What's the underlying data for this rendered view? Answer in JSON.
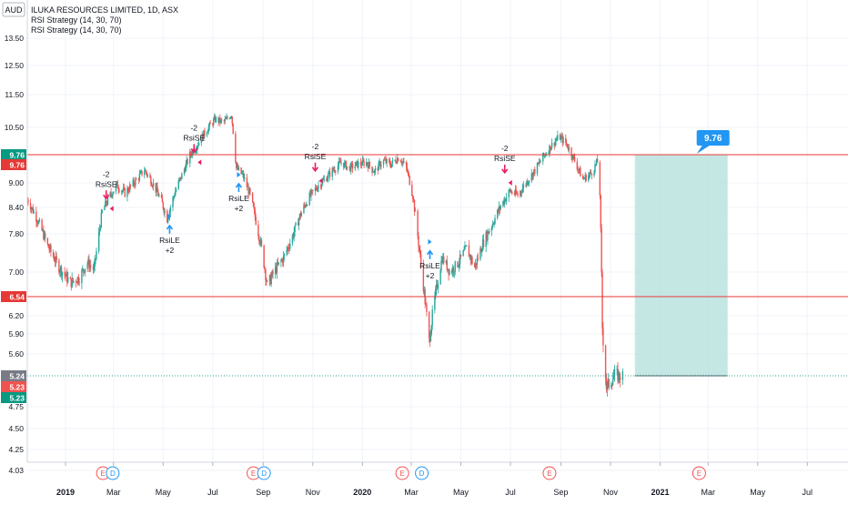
{
  "header": {
    "currency": "AUD",
    "title": "ILUKA RESOURCES LIMITED, 1D, ASX",
    "indicators": [
      "RSI Strategy (14, 30, 70)",
      "RSI Strategy (14, 30, 70)"
    ]
  },
  "colors": {
    "up": "#26a69a",
    "down": "#ef5350",
    "level": "#e53935",
    "target_zone": "#b2dfdb",
    "callout": "#2196f3",
    "price_tag_last": "#787b86",
    "grid": "#f0f3fa",
    "axis_text": "#131722"
  },
  "chart_data": {
    "type": "candlestick",
    "y_ticks": [
      "13.50",
      "12.50",
      "11.50",
      "10.50",
      "9.76",
      "9.76",
      "9.00",
      "8.40",
      "7.80",
      "7.00",
      "6.54",
      "6.20",
      "5.90",
      "5.60",
      "5.24",
      "5.23",
      "5.23",
      "4.75",
      "4.50",
      "4.25",
      "4.03"
    ],
    "y_tick_values": [
      13.5,
      12.5,
      11.5,
      10.5,
      9.9,
      9.55,
      9.0,
      8.4,
      7.8,
      7.0,
      6.54,
      6.2,
      5.9,
      5.6,
      5.24,
      5.23,
      5.23,
      4.75,
      4.5,
      4.25,
      4.03
    ],
    "x_ticks": [
      {
        "label": "2019",
        "bold": true,
        "date": "2019-01-01"
      },
      {
        "label": "Mar",
        "bold": false,
        "date": "2019-03-01"
      },
      {
        "label": "May",
        "bold": false,
        "date": "2019-05-01"
      },
      {
        "label": "Jul",
        "bold": false,
        "date": "2019-07-01"
      },
      {
        "label": "Sep",
        "bold": false,
        "date": "2019-09-01"
      },
      {
        "label": "Nov",
        "bold": false,
        "date": "2019-11-01"
      },
      {
        "label": "2020",
        "bold": true,
        "date": "2020-01-01"
      },
      {
        "label": "Mar",
        "bold": false,
        "date": "2020-03-01"
      },
      {
        "label": "May",
        "bold": false,
        "date": "2020-05-01"
      },
      {
        "label": "Jul",
        "bold": false,
        "date": "2020-07-01"
      },
      {
        "label": "Sep",
        "bold": false,
        "date": "2020-09-01"
      },
      {
        "label": "Nov",
        "bold": false,
        "date": "2020-11-01"
      },
      {
        "label": "2021",
        "bold": true,
        "date": "2021-01-01"
      },
      {
        "label": "Mar",
        "bold": false,
        "date": "2021-03-01"
      },
      {
        "label": "May",
        "bold": false,
        "date": "2021-05-01"
      },
      {
        "label": "Jul",
        "bold": false,
        "date": "2021-07-01"
      }
    ],
    "x_range": [
      "2018-11-15",
      "2021-08-20"
    ],
    "levels": [
      {
        "value": 9.76,
        "label": "9.76",
        "color": "#e53935"
      },
      {
        "value": 6.54,
        "label": "6.54",
        "color": "#e53935"
      }
    ],
    "last_price": {
      "value": 5.24,
      "label": "5.24"
    },
    "target": {
      "label": "9.76",
      "top": 9.76,
      "bottom": 5.24,
      "start": "2020-12-01",
      "end": "2021-03-25"
    },
    "price_path": [
      [
        "2018-11-15",
        8.6
      ],
      [
        "2018-11-28",
        8.1
      ],
      [
        "2018-12-10",
        7.55
      ],
      [
        "2018-12-24",
        7.1
      ],
      [
        "2019-01-07",
        6.8
      ],
      [
        "2019-01-18",
        6.9
      ],
      [
        "2019-01-28",
        7.2
      ],
      [
        "2019-02-05",
        7.05
      ],
      [
        "2019-02-15",
        8.3
      ],
      [
        "2019-02-25",
        8.7
      ],
      [
        "2019-03-05",
        8.95
      ],
      [
        "2019-03-15",
        8.75
      ],
      [
        "2019-03-28",
        9.05
      ],
      [
        "2019-04-08",
        9.35
      ],
      [
        "2019-04-18",
        9.0
      ],
      [
        "2019-04-28",
        8.6
      ],
      [
        "2019-05-06",
        8.15
      ],
      [
        "2019-05-16",
        8.8
      ],
      [
        "2019-05-24",
        9.2
      ],
      [
        "2019-06-03",
        9.75
      ],
      [
        "2019-06-14",
        10.1
      ],
      [
        "2019-06-24",
        10.45
      ],
      [
        "2019-07-04",
        10.75
      ],
      [
        "2019-07-14",
        10.65
      ],
      [
        "2019-07-24",
        10.9
      ],
      [
        "2019-07-30",
        9.4
      ],
      [
        "2019-08-07",
        9.2
      ],
      [
        "2019-08-16",
        8.7
      ],
      [
        "2019-08-23",
        8.1
      ],
      [
        "2019-08-30",
        7.5
      ],
      [
        "2019-09-06",
        6.75
      ],
      [
        "2019-09-16",
        7.05
      ],
      [
        "2019-09-26",
        7.3
      ],
      [
        "2019-10-06",
        7.7
      ],
      [
        "2019-10-16",
        8.2
      ],
      [
        "2019-10-26",
        8.6
      ],
      [
        "2019-11-06",
        8.9
      ],
      [
        "2019-11-16",
        9.1
      ],
      [
        "2019-11-26",
        9.35
      ],
      [
        "2019-12-06",
        9.55
      ],
      [
        "2019-12-16",
        9.4
      ],
      [
        "2019-12-26",
        9.5
      ],
      [
        "2020-01-06",
        9.55
      ],
      [
        "2020-01-16",
        9.3
      ],
      [
        "2020-01-26",
        9.6
      ],
      [
        "2020-02-05",
        9.5
      ],
      [
        "2020-02-15",
        9.7
      ],
      [
        "2020-02-24",
        9.4
      ],
      [
        "2020-03-03",
        8.7
      ],
      [
        "2020-03-10",
        7.6
      ],
      [
        "2020-03-17",
        6.6
      ],
      [
        "2020-03-23",
        5.8
      ],
      [
        "2020-03-30",
        6.5
      ],
      [
        "2020-04-08",
        7.3
      ],
      [
        "2020-04-18",
        7.0
      ],
      [
        "2020-04-28",
        7.2
      ],
      [
        "2020-05-08",
        7.5
      ],
      [
        "2020-05-18",
        7.1
      ],
      [
        "2020-05-28",
        7.6
      ],
      [
        "2020-06-08",
        8.0
      ],
      [
        "2020-06-18",
        8.4
      ],
      [
        "2020-06-30",
        8.8
      ],
      [
        "2020-07-10",
        8.7
      ],
      [
        "2020-07-20",
        9.0
      ],
      [
        "2020-07-30",
        9.3
      ],
      [
        "2020-08-10",
        9.7
      ],
      [
        "2020-08-20",
        10.0
      ],
      [
        "2020-08-30",
        10.25
      ],
      [
        "2020-09-08",
        10.05
      ],
      [
        "2020-09-18",
        9.6
      ],
      [
        "2020-09-28",
        9.1
      ],
      [
        "2020-10-08",
        9.25
      ],
      [
        "2020-10-18",
        9.65
      ],
      [
        "2020-10-22",
        6.0
      ],
      [
        "2020-10-27",
        5.05
      ],
      [
        "2020-11-06",
        5.25
      ],
      [
        "2020-11-16",
        5.24
      ]
    ],
    "signals": [
      {
        "type": "short",
        "date": "2019-02-20",
        "price": 8.55,
        "label": "-2\nRsiSE"
      },
      {
        "type": "long",
        "date": "2019-05-09",
        "price": 8.05,
        "label": "RsiLE\n+2"
      },
      {
        "type": "short",
        "date": "2019-06-08",
        "price": 9.75,
        "label": "-2\nRsiSE"
      },
      {
        "type": "long",
        "date": "2019-08-02",
        "price": 9.05,
        "label": "RsiLE\n+2"
      },
      {
        "type": "short",
        "date": "2019-11-04",
        "price": 9.25,
        "label": "-2\nRsiSE"
      },
      {
        "type": "long",
        "date": "2020-03-24",
        "price": 7.5,
        "label": "RsiLE\n+2"
      },
      {
        "type": "short",
        "date": "2020-06-24",
        "price": 9.2,
        "label": "-2\nRsiSE"
      }
    ],
    "events": [
      {
        "type": "E",
        "date": "2019-02-16"
      },
      {
        "type": "D",
        "date": "2019-02-28"
      },
      {
        "type": "E",
        "date": "2019-08-20"
      },
      {
        "type": "D",
        "date": "2019-09-02"
      },
      {
        "type": "E",
        "date": "2020-02-19"
      },
      {
        "type": "D",
        "date": "2020-03-14"
      },
      {
        "type": "E",
        "date": "2020-08-18"
      },
      {
        "type": "E",
        "date": "2021-02-18"
      }
    ]
  }
}
